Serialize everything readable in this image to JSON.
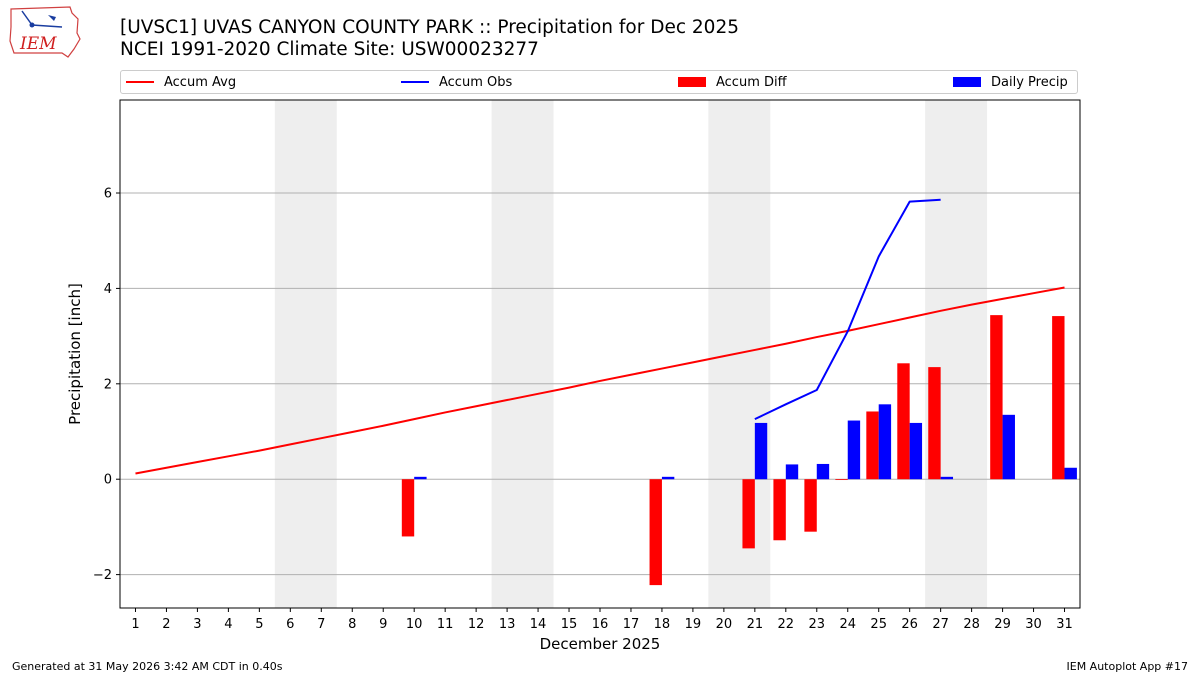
{
  "title_line1": "[UVSC1] UVAS CANYON COUNTY PARK :: Precipitation for Dec 2025",
  "title_line2": "NCEI 1991-2020 Climate Site: USW00023277",
  "logo_text": "IEM",
  "footer_left": "Generated at 31 May 2026 3:42 AM CDT in 0.40s",
  "footer_right": "IEM Autoplot App #17",
  "colors": {
    "accum_avg": "#ff0000",
    "accum_obs": "#0000ff",
    "accum_diff": "#ff0000",
    "daily_precip": "#0000ff",
    "weekend_shade": "#eeeeee",
    "grid": "#b0b0b0"
  },
  "chart_data": {
    "type": "bar",
    "xlabel": "December 2025",
    "ylabel": "Precipitation [inch]",
    "ylim": [
      -2.7,
      7.95
    ],
    "yticks": [
      -2,
      0,
      2,
      4,
      6
    ],
    "ytick_labels": [
      "−2",
      "0",
      "2",
      "4",
      "6"
    ],
    "grid": "horizontal",
    "legend": "top, above plot",
    "x": [
      1,
      2,
      3,
      4,
      5,
      6,
      7,
      8,
      9,
      10,
      11,
      12,
      13,
      14,
      15,
      16,
      17,
      18,
      19,
      20,
      21,
      22,
      23,
      24,
      25,
      26,
      27,
      28,
      29,
      30,
      31
    ],
    "weekend_spans": [
      [
        6,
        7
      ],
      [
        13,
        14
      ],
      [
        20,
        21
      ],
      [
        27,
        28
      ]
    ],
    "series": [
      {
        "name": "Accum Avg",
        "kind": "line",
        "x": [
          1,
          2,
          3,
          4,
          5,
          6,
          7,
          8,
          9,
          10,
          11,
          12,
          13,
          14,
          15,
          16,
          17,
          18,
          19,
          20,
          21,
          22,
          23,
          24,
          25,
          26,
          27,
          28,
          29,
          30,
          31
        ],
        "values": [
          0.12,
          0.24,
          0.36,
          0.48,
          0.6,
          0.73,
          0.86,
          0.99,
          1.12,
          1.26,
          1.4,
          1.53,
          1.66,
          1.79,
          1.92,
          2.06,
          2.19,
          2.32,
          2.45,
          2.58,
          2.71,
          2.84,
          2.98,
          3.11,
          3.25,
          3.39,
          3.53,
          3.66,
          3.78,
          3.9,
          4.02
        ]
      },
      {
        "name": "Accum Obs",
        "kind": "line",
        "x": [
          21,
          22,
          23,
          24,
          25,
          26,
          27
        ],
        "values": [
          1.26,
          1.57,
          1.87,
          3.1,
          4.67,
          5.82,
          5.86
        ]
      },
      {
        "name": "Accum Diff",
        "kind": "bar",
        "x": [
          10,
          18,
          21,
          22,
          23,
          24,
          25,
          26,
          27,
          29,
          31
        ],
        "values": [
          -1.2,
          -2.22,
          -1.45,
          -1.28,
          -1.1,
          -0.01,
          1.42,
          2.43,
          2.35,
          3.44,
          3.42
        ]
      },
      {
        "name": "Daily Precip",
        "kind": "bar",
        "x": [
          10,
          18,
          21,
          22,
          23,
          24,
          25,
          26,
          27,
          29,
          31
        ],
        "values": [
          0.05,
          0.05,
          1.18,
          0.31,
          0.32,
          1.23,
          1.57,
          1.18,
          0.05,
          1.35,
          0.24
        ]
      }
    ]
  }
}
